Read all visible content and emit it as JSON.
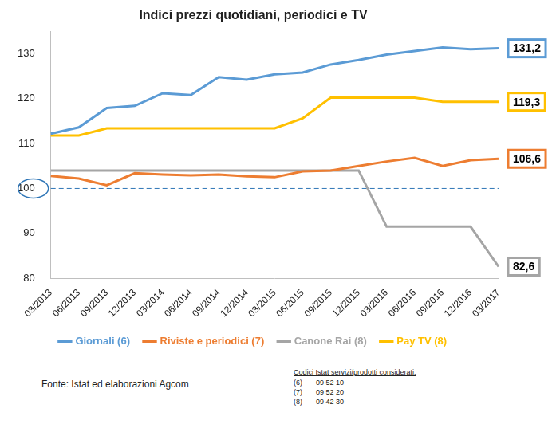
{
  "chart_data": {
    "type": "line",
    "title": "Indici prezzi quotidiani, periodici e TV",
    "categories": [
      "03/2013",
      "06/2013",
      "09/2013",
      "12/2013",
      "03/2014",
      "06/2014",
      "09/2014",
      "12/2014",
      "03/2015",
      "06/2015",
      "09/2015",
      "12/2015",
      "03/2016",
      "06/2016",
      "09/2016",
      "12/2016",
      "03/2017"
    ],
    "series": [
      {
        "name": "Giornali (6)",
        "color": "#5b9bd5",
        "values": [
          112.2,
          113.6,
          117.9,
          118.4,
          121.2,
          120.8,
          124.8,
          124.2,
          125.4,
          125.8,
          127.6,
          128.6,
          129.8,
          130.6,
          131.4,
          131.0,
          131.2
        ],
        "value_labels": [
          null,
          null,
          null,
          null,
          null,
          null,
          null,
          null,
          null,
          null,
          null,
          null,
          null,
          null,
          null,
          null,
          "131,2"
        ]
      },
      {
        "name": "Riviste e periodici (7)",
        "color": "#ed7d31",
        "values": [
          102.8,
          102.2,
          100.7,
          103.4,
          103.1,
          102.9,
          103.1,
          102.7,
          102.5,
          103.8,
          104.0,
          105.0,
          106.0,
          106.8,
          105.0,
          106.3,
          106.6
        ],
        "value_labels": [
          null,
          null,
          null,
          null,
          null,
          null,
          null,
          null,
          null,
          null,
          null,
          null,
          null,
          null,
          null,
          null,
          "106,6"
        ]
      },
      {
        "name": "Canone Rai (8)",
        "color": "#a5a5a5",
        "values": [
          104.0,
          104.0,
          104.0,
          104.0,
          104.0,
          104.0,
          104.0,
          104.0,
          104.0,
          104.0,
          104.0,
          104.0,
          91.5,
          91.5,
          91.5,
          91.5,
          82.6
        ],
        "value_labels": [
          null,
          null,
          null,
          null,
          null,
          null,
          null,
          null,
          null,
          null,
          null,
          null,
          null,
          null,
          null,
          null,
          "82,6"
        ]
      },
      {
        "name": "Pay TV (8)",
        "color": "#ffc000",
        "values": [
          111.8,
          111.8,
          113.4,
          113.4,
          113.4,
          113.4,
          113.4,
          113.4,
          113.4,
          115.6,
          120.2,
          120.2,
          120.2,
          120.2,
          119.3,
          119.3,
          119.3
        ],
        "value_labels": [
          null,
          null,
          null,
          null,
          null,
          null,
          null,
          null,
          null,
          null,
          null,
          null,
          null,
          null,
          null,
          null,
          "119,3"
        ]
      }
    ],
    "ylim": [
      80,
      135
    ],
    "yticks": [
      80,
      90,
      100,
      110,
      120,
      130
    ],
    "grid": false,
    "legend": "bottom",
    "data_labels": true,
    "reference_line": {
      "value": 100,
      "color": "#2e75b6",
      "line_style": "dashed"
    },
    "source": "Fonte: Istat ed elaborazioni Agcom",
    "codes": {
      "title": "Codici Istat servizi/prodotti considerati:",
      "rows": [
        [
          "(6)",
          "09 52 10"
        ],
        [
          "(7)",
          "09 52 20"
        ],
        [
          "(8)",
          "09 42 30"
        ]
      ]
    }
  }
}
